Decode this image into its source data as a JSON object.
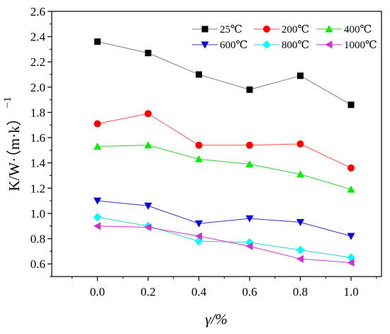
{
  "chart_data": {
    "type": "line",
    "xlabel": "γ/%",
    "ylabel": "K/W·（m·k）",
    "ylabel_superscript": "−1",
    "xlim": [
      -0.18,
      1.12
    ],
    "ylim": [
      0.5,
      2.6
    ],
    "x_ticks": [
      "0.0",
      "0.2",
      "0.4",
      "0.6",
      "0.8",
      "1.0"
    ],
    "y_ticks": [
      "0.6",
      "0.8",
      "1.0",
      "1.2",
      "1.4",
      "1.6",
      "1.8",
      "2.0",
      "2.2",
      "2.4",
      "2.6"
    ],
    "grid": false,
    "legend_position": "top-right",
    "x": [
      0.0,
      0.2,
      0.4,
      0.6,
      0.8,
      1.0
    ],
    "series": [
      {
        "name": "25℃",
        "values": [
          2.36,
          2.27,
          2.1,
          1.98,
          2.09,
          1.86
        ],
        "marker": "square",
        "color": "#000000",
        "line_color": "#7f7f7f"
      },
      {
        "name": "200℃",
        "values": [
          1.71,
          1.79,
          1.54,
          1.54,
          1.55,
          1.36
        ],
        "marker": "circle",
        "color": "#ff0000",
        "line_color": "#ff4d4d"
      },
      {
        "name": "400℃",
        "values": [
          1.53,
          1.54,
          1.43,
          1.39,
          1.31,
          1.19
        ],
        "marker": "triangle-up",
        "color": "#00ee00",
        "line_color": "#33cc33"
      },
      {
        "name": "600℃",
        "values": [
          1.1,
          1.06,
          0.92,
          0.96,
          0.93,
          0.82
        ],
        "marker": "triangle-down",
        "color": "#0000dd",
        "line_color": "#3333cc"
      },
      {
        "name": "800℃",
        "values": [
          0.97,
          0.9,
          0.78,
          0.77,
          0.71,
          0.65
        ],
        "marker": "diamond",
        "color": "#00ffff",
        "line_color": "#33cccc"
      },
      {
        "name": "1000℃",
        "values": [
          0.9,
          0.89,
          0.82,
          0.74,
          0.64,
          0.61
        ],
        "marker": "triangle-left",
        "color": "#cc33cc",
        "line_color": "#cc33cc"
      }
    ]
  }
}
